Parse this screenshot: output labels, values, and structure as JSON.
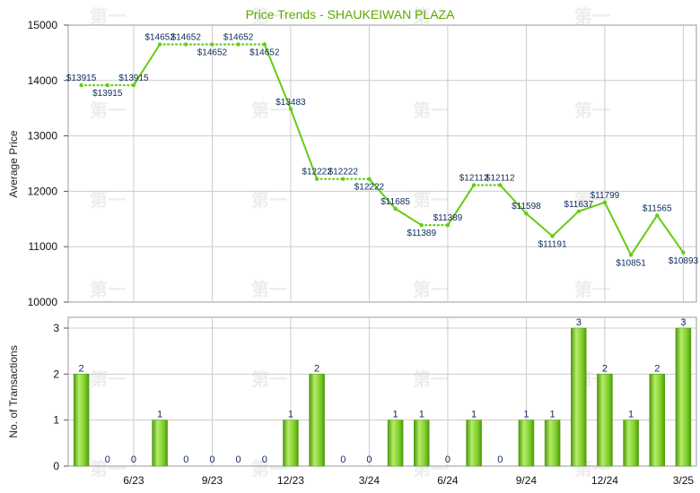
{
  "chart_data": [
    {
      "type": "line",
      "title": "Price Trends - SHAUKEIWAN PLAZA",
      "ylabel": "Average Price",
      "ylim": [
        10000,
        15000
      ],
      "yticks": [
        "15000",
        "14000",
        "13000",
        "12000",
        "11000",
        "10000"
      ],
      "grid": true,
      "connector_style": "dotted where the month has no transactions",
      "series": [
        {
          "values": [
            13915,
            13915,
            13915,
            14652,
            14652,
            14652,
            14652,
            14652,
            13483,
            12222,
            12222,
            12222,
            11685,
            11389,
            11389,
            12112,
            12112,
            11598,
            11191,
            11637,
            11799,
            10851,
            11565,
            10893
          ],
          "labels": [
            "$13915",
            "$13915",
            "$13915",
            "$14652",
            "$14652",
            "$14652",
            "$14652",
            "$14652",
            "$13483",
            "$12222",
            "$12222",
            "$12222",
            "$11685",
            "$11389",
            "$11389",
            "$12112",
            "$12112",
            "$11598",
            "$11191",
            "$11637",
            "$11799",
            "$10851",
            "$11565",
            "$10893"
          ]
        }
      ]
    },
    {
      "type": "bar",
      "ylabel": "No. of Transactions",
      "ylim": [
        0,
        3
      ],
      "yticks": [
        "3",
        "2",
        "1",
        "0"
      ],
      "x_tick_labels": [
        "6/23",
        "9/23",
        "12/23",
        "3/24",
        "6/24",
        "9/24",
        "12/24",
        "3/25"
      ],
      "series": [
        {
          "values": [
            2,
            0,
            0,
            1,
            0,
            0,
            0,
            0,
            1,
            2,
            0,
            0,
            1,
            1,
            0,
            1,
            0,
            1,
            1,
            3,
            2,
            1,
            2,
            3
          ],
          "labels": [
            "2",
            "0",
            "0",
            "1",
            "0",
            "0",
            "0",
            "0",
            "1",
            "2",
            "0",
            "0",
            "1",
            "1",
            "0",
            "1",
            "0",
            "1",
            "1",
            "3",
            "2",
            "1",
            "2",
            "3"
          ]
        }
      ]
    }
  ],
  "colors": {
    "title": "#5fa800",
    "line": "#66cc11",
    "bar_light": "#b6ec6a",
    "bar_mid": "#7ccc26",
    "bar_dark": "#4c9a0a",
    "grid": "#cccccc",
    "label": "#0a2a5a"
  },
  "watermark": "第一"
}
